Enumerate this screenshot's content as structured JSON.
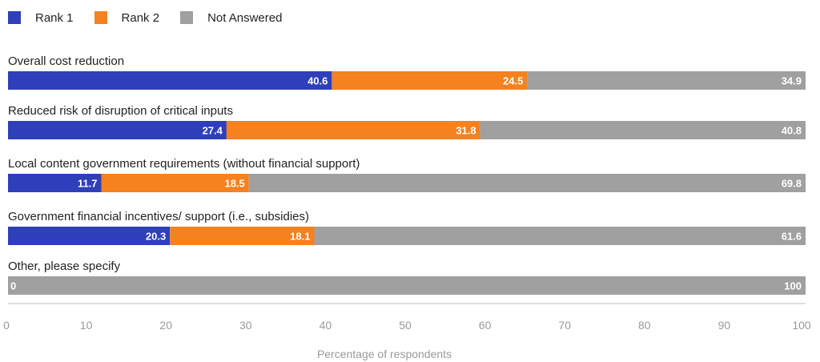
{
  "chart_data": {
    "type": "bar",
    "orientation": "horizontal",
    "stacked": true,
    "categories": [
      "Overall cost reduction",
      "Reduced risk of disruption of critical inputs",
      "Local content government requirements (without financial support)",
      "Government financial incentives/ support (i.e., subsidies)",
      "Other, please specify"
    ],
    "series": [
      {
        "name": "Rank 1",
        "color": "#2f3fba",
        "values": [
          40.6,
          27.4,
          11.7,
          20.3,
          0
        ]
      },
      {
        "name": "Rank 2",
        "color": "#f5811f",
        "values": [
          24.5,
          31.8,
          18.5,
          18.1,
          0
        ]
      },
      {
        "name": "Not Answered",
        "color": "#a0a0a0",
        "values": [
          34.9,
          40.8,
          69.8,
          61.6,
          100
        ]
      }
    ],
    "xlabel": "Percentage of respondents",
    "ylabel": "",
    "xlim": [
      0,
      100
    ],
    "xticks": [
      0,
      10,
      20,
      30,
      40,
      50,
      60,
      70,
      80,
      90,
      100
    ],
    "legend": "top-left",
    "grid": false
  }
}
